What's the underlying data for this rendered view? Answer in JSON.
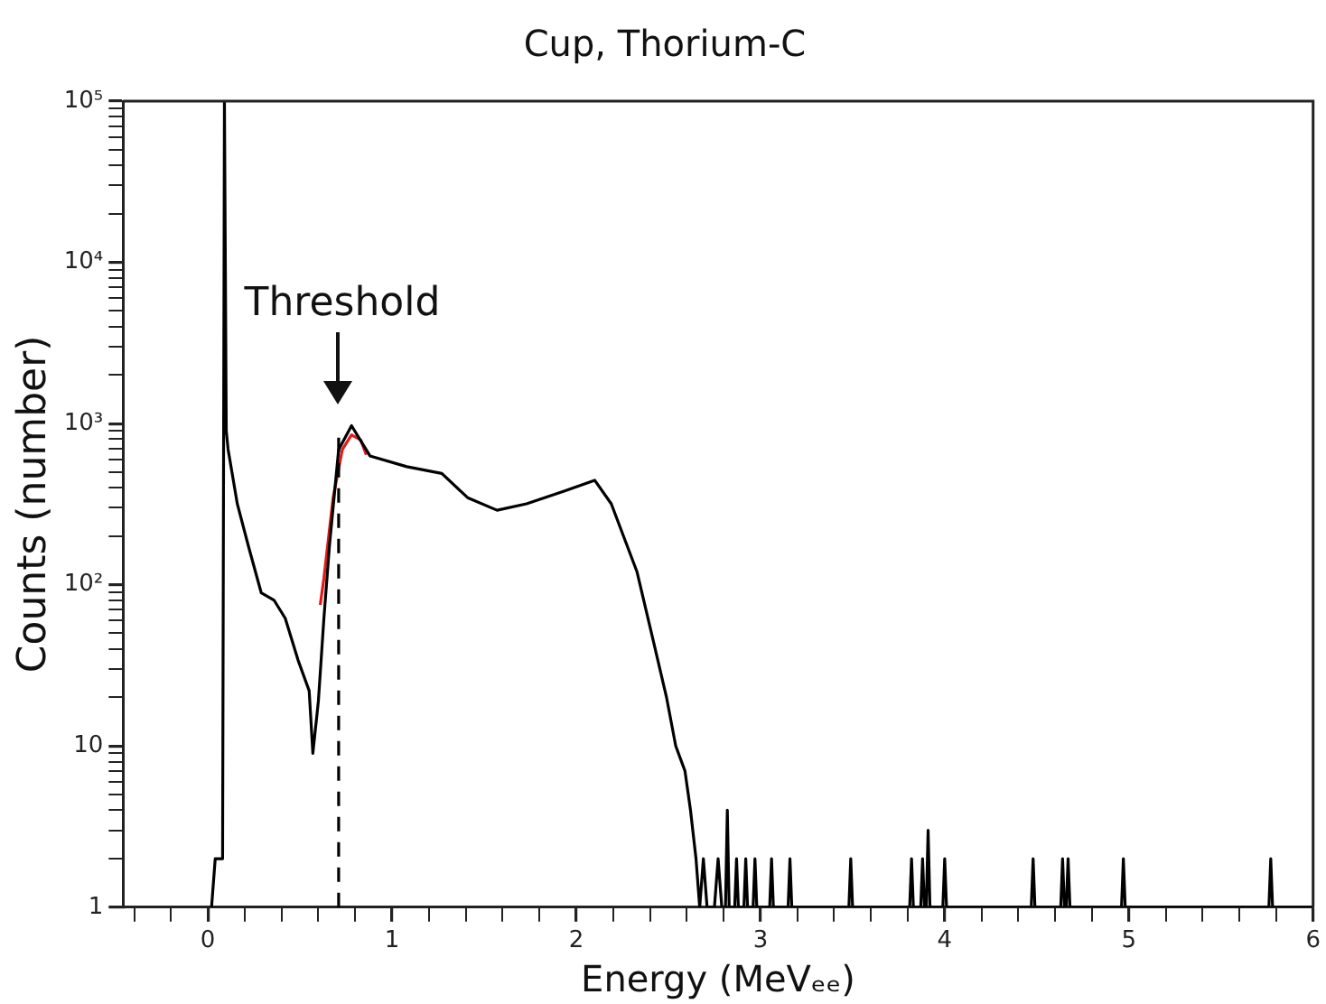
{
  "chart_data": {
    "type": "line",
    "title": "Cup, Thorium-C",
    "xlabel": "Energy (MeVₑₑ)",
    "ylabel": "Counts (number)",
    "log": "y",
    "grid": false,
    "legend": false,
    "marker": "none",
    "xlim": [
      -0.46,
      6
    ],
    "xticks": [
      {
        "value": -0.4,
        "label": null
      },
      {
        "value": -0.2,
        "label": null
      },
      0,
      {
        "value": 0.2,
        "label": null
      },
      {
        "value": 0.4,
        "label": null
      },
      {
        "value": 0.6,
        "label": null
      },
      {
        "value": 0.8,
        "label": null
      },
      1,
      {
        "value": 1.2,
        "label": null
      },
      {
        "value": 1.4,
        "label": null
      },
      {
        "value": 1.6,
        "label": null
      },
      {
        "value": 1.8,
        "label": null
      },
      2,
      {
        "value": 2.2,
        "label": null
      },
      {
        "value": 2.4,
        "label": null
      },
      {
        "value": 2.6,
        "label": null
      },
      {
        "value": 2.8,
        "label": null
      },
      3,
      {
        "value": 3.2,
        "label": null
      },
      {
        "value": 3.4,
        "label": null
      },
      {
        "value": 3.6,
        "label": null
      },
      {
        "value": 3.8,
        "label": null
      },
      4,
      {
        "value": 4.2,
        "label": null
      },
      {
        "value": 4.4,
        "label": null
      },
      {
        "value": 4.6,
        "label": null
      },
      {
        "value": 4.8,
        "label": null
      },
      5,
      {
        "value": 5.2,
        "label": null
      },
      {
        "value": 5.4,
        "label": null
      },
      {
        "value": 5.6,
        "label": null
      },
      {
        "value": 5.8,
        "label": null
      },
      6
    ],
    "ylim": [
      1,
      100000
    ],
    "yticks": [
      1,
      {
        "value": 2,
        "label": null
      },
      {
        "value": 3,
        "label": null
      },
      {
        "value": 4,
        "label": null
      },
      {
        "value": 5,
        "label": null
      },
      {
        "value": 6,
        "label": null
      },
      {
        "value": 7,
        "label": null
      },
      {
        "value": 8,
        "label": null
      },
      {
        "value": 9,
        "label": null
      },
      10,
      {
        "value": 20,
        "label": null
      },
      {
        "value": 30,
        "label": null
      },
      {
        "value": 40,
        "label": null
      },
      {
        "value": 50,
        "label": null
      },
      {
        "value": 60,
        "label": null
      },
      {
        "value": 70,
        "label": null
      },
      {
        "value": 80,
        "label": null
      },
      {
        "value": 90,
        "label": null
      },
      {
        "value": 100,
        "label": "10²"
      },
      {
        "value": 200,
        "label": null
      },
      {
        "value": 300,
        "label": null
      },
      {
        "value": 400,
        "label": null
      },
      {
        "value": 500,
        "label": null
      },
      {
        "value": 600,
        "label": null
      },
      {
        "value": 700,
        "label": null
      },
      {
        "value": 800,
        "label": null
      },
      {
        "value": 900,
        "label": null
      },
      {
        "value": 1000,
        "label": "10³"
      },
      {
        "value": 2000,
        "label": null
      },
      {
        "value": 3000,
        "label": null
      },
      {
        "value": 4000,
        "label": null
      },
      {
        "value": 5000,
        "label": null
      },
      {
        "value": 6000,
        "label": null
      },
      {
        "value": 7000,
        "label": null
      },
      {
        "value": 8000,
        "label": null
      },
      {
        "value": 9000,
        "label": null
      },
      {
        "value": 10000,
        "label": "10⁴"
      },
      {
        "value": 20000,
        "label": null
      },
      {
        "value": 30000,
        "label": null
      },
      {
        "value": 40000,
        "label": null
      },
      {
        "value": 50000,
        "label": null
      },
      {
        "value": 60000,
        "label": null
      },
      {
        "value": 70000,
        "label": null
      },
      {
        "value": 80000,
        "label": null
      },
      {
        "value": 90000,
        "label": null
      },
      {
        "value": 100000,
        "label": "10⁵"
      }
    ],
    "ref_lines": [
      {
        "axis": "x",
        "value": 0.71,
        "label": "Threshold",
        "line_style": "dashed",
        "color": "#000000"
      }
    ],
    "series": [
      {
        "color": "#000000",
        "x": [
          0.02,
          0.04,
          0.07,
          0.08,
          0.09,
          0.1,
          0.11,
          0.16,
          0.22,
          0.29,
          0.36,
          0.42,
          0.49,
          0.55,
          0.57,
          0.6,
          0.63,
          0.66,
          0.71,
          0.78,
          0.88,
          1.08,
          1.27,
          1.41,
          1.57,
          1.73,
          1.93,
          2.1,
          2.19,
          2.33,
          2.42,
          2.49,
          2.54,
          2.59,
          2.62,
          2.65,
          2.67,
          2.69,
          2.71,
          2.75,
          2.77,
          2.79,
          2.81,
          2.82,
          2.83,
          2.86,
          2.87,
          2.88,
          2.91,
          2.92,
          2.93,
          2.96,
          2.97,
          2.98,
          3.05,
          3.06,
          3.07,
          3.15,
          3.16,
          3.17,
          3.48,
          3.49,
          3.5,
          3.81,
          3.82,
          3.83,
          3.87,
          3.88,
          3.89,
          3.9,
          3.91,
          3.92,
          3.99,
          4.0,
          4.01,
          4.47,
          4.48,
          4.49,
          4.63,
          4.64,
          4.65,
          4.66,
          4.67,
          4.68,
          4.96,
          4.97,
          4.98,
          5.76,
          5.77,
          5.78,
          6
        ],
        "values": [
          1,
          2,
          2,
          2,
          100000,
          900,
          690,
          317,
          174,
          89,
          80,
          62,
          34,
          22,
          9,
          19,
          62,
          174,
          690,
          970,
          630,
          540,
          490,
          347,
          290,
          318,
          380,
          445,
          318,
          120,
          44,
          20,
          10,
          7,
          4,
          2,
          1,
          2,
          1,
          1,
          2,
          1,
          1,
          4,
          1,
          1,
          2,
          1,
          1,
          2,
          1,
          1,
          2,
          1,
          1,
          2,
          1,
          1,
          2,
          1,
          1,
          2,
          1,
          1,
          2,
          1,
          1,
          2,
          1,
          1,
          3,
          1,
          1,
          2,
          1,
          1,
          2,
          1,
          1,
          2,
          1,
          1,
          2,
          1,
          1,
          2,
          1,
          1,
          2,
          1,
          1
        ]
      },
      {
        "color": "#e31a1c",
        "x": [
          0.61,
          0.63,
          0.68,
          0.73,
          0.78,
          0.83,
          0.86
        ],
        "values": [
          75,
          110,
          347,
          690,
          850,
          790,
          640
        ]
      }
    ]
  }
}
